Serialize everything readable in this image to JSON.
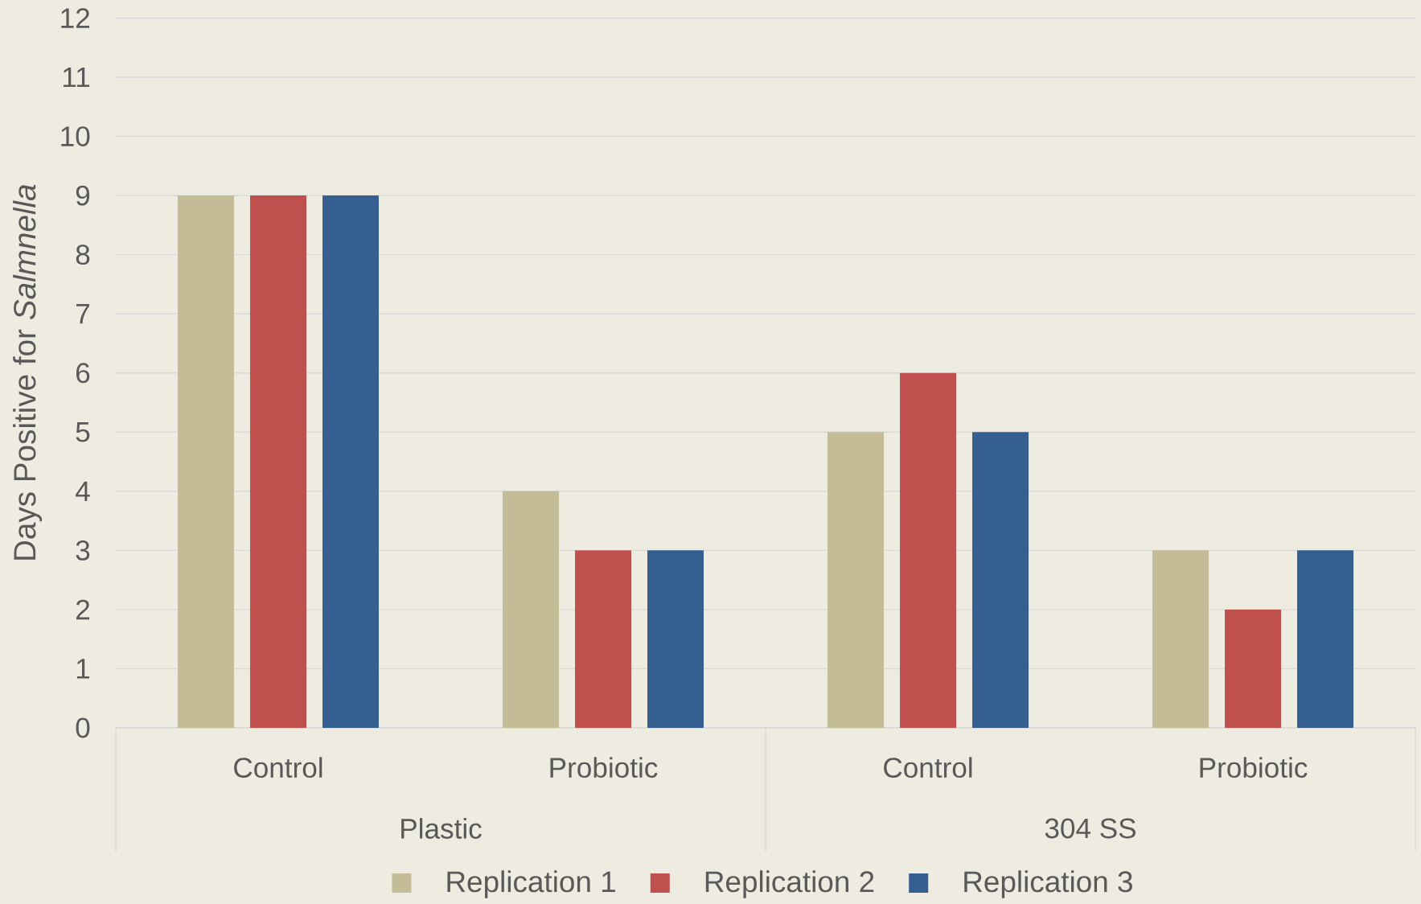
{
  "chart_data": {
    "type": "bar",
    "ylabel": "Days Positive for *Salmnella*",
    "categories": [
      "Control",
      "Probiotic",
      "Control",
      "Probiotic"
    ],
    "annotations": [
      "Plastic",
      "304 SS"
    ],
    "series": [
      {
        "name": "Replication 1",
        "color": "#c4bc96",
        "values": [
          9,
          4,
          5,
          3
        ]
      },
      {
        "name": "Replication 2",
        "color": "#c0504d",
        "values": [
          9,
          3,
          6,
          2
        ]
      },
      {
        "name": "Replication 3",
        "color": "#355f91",
        "values": [
          9,
          3,
          5,
          3
        ]
      }
    ],
    "ylim": [
      0,
      12
    ],
    "yticks": [
      0,
      1,
      2,
      3,
      4,
      5,
      6,
      7,
      8,
      9,
      10,
      11,
      12
    ],
    "grid": "y",
    "legend": "bottom"
  }
}
